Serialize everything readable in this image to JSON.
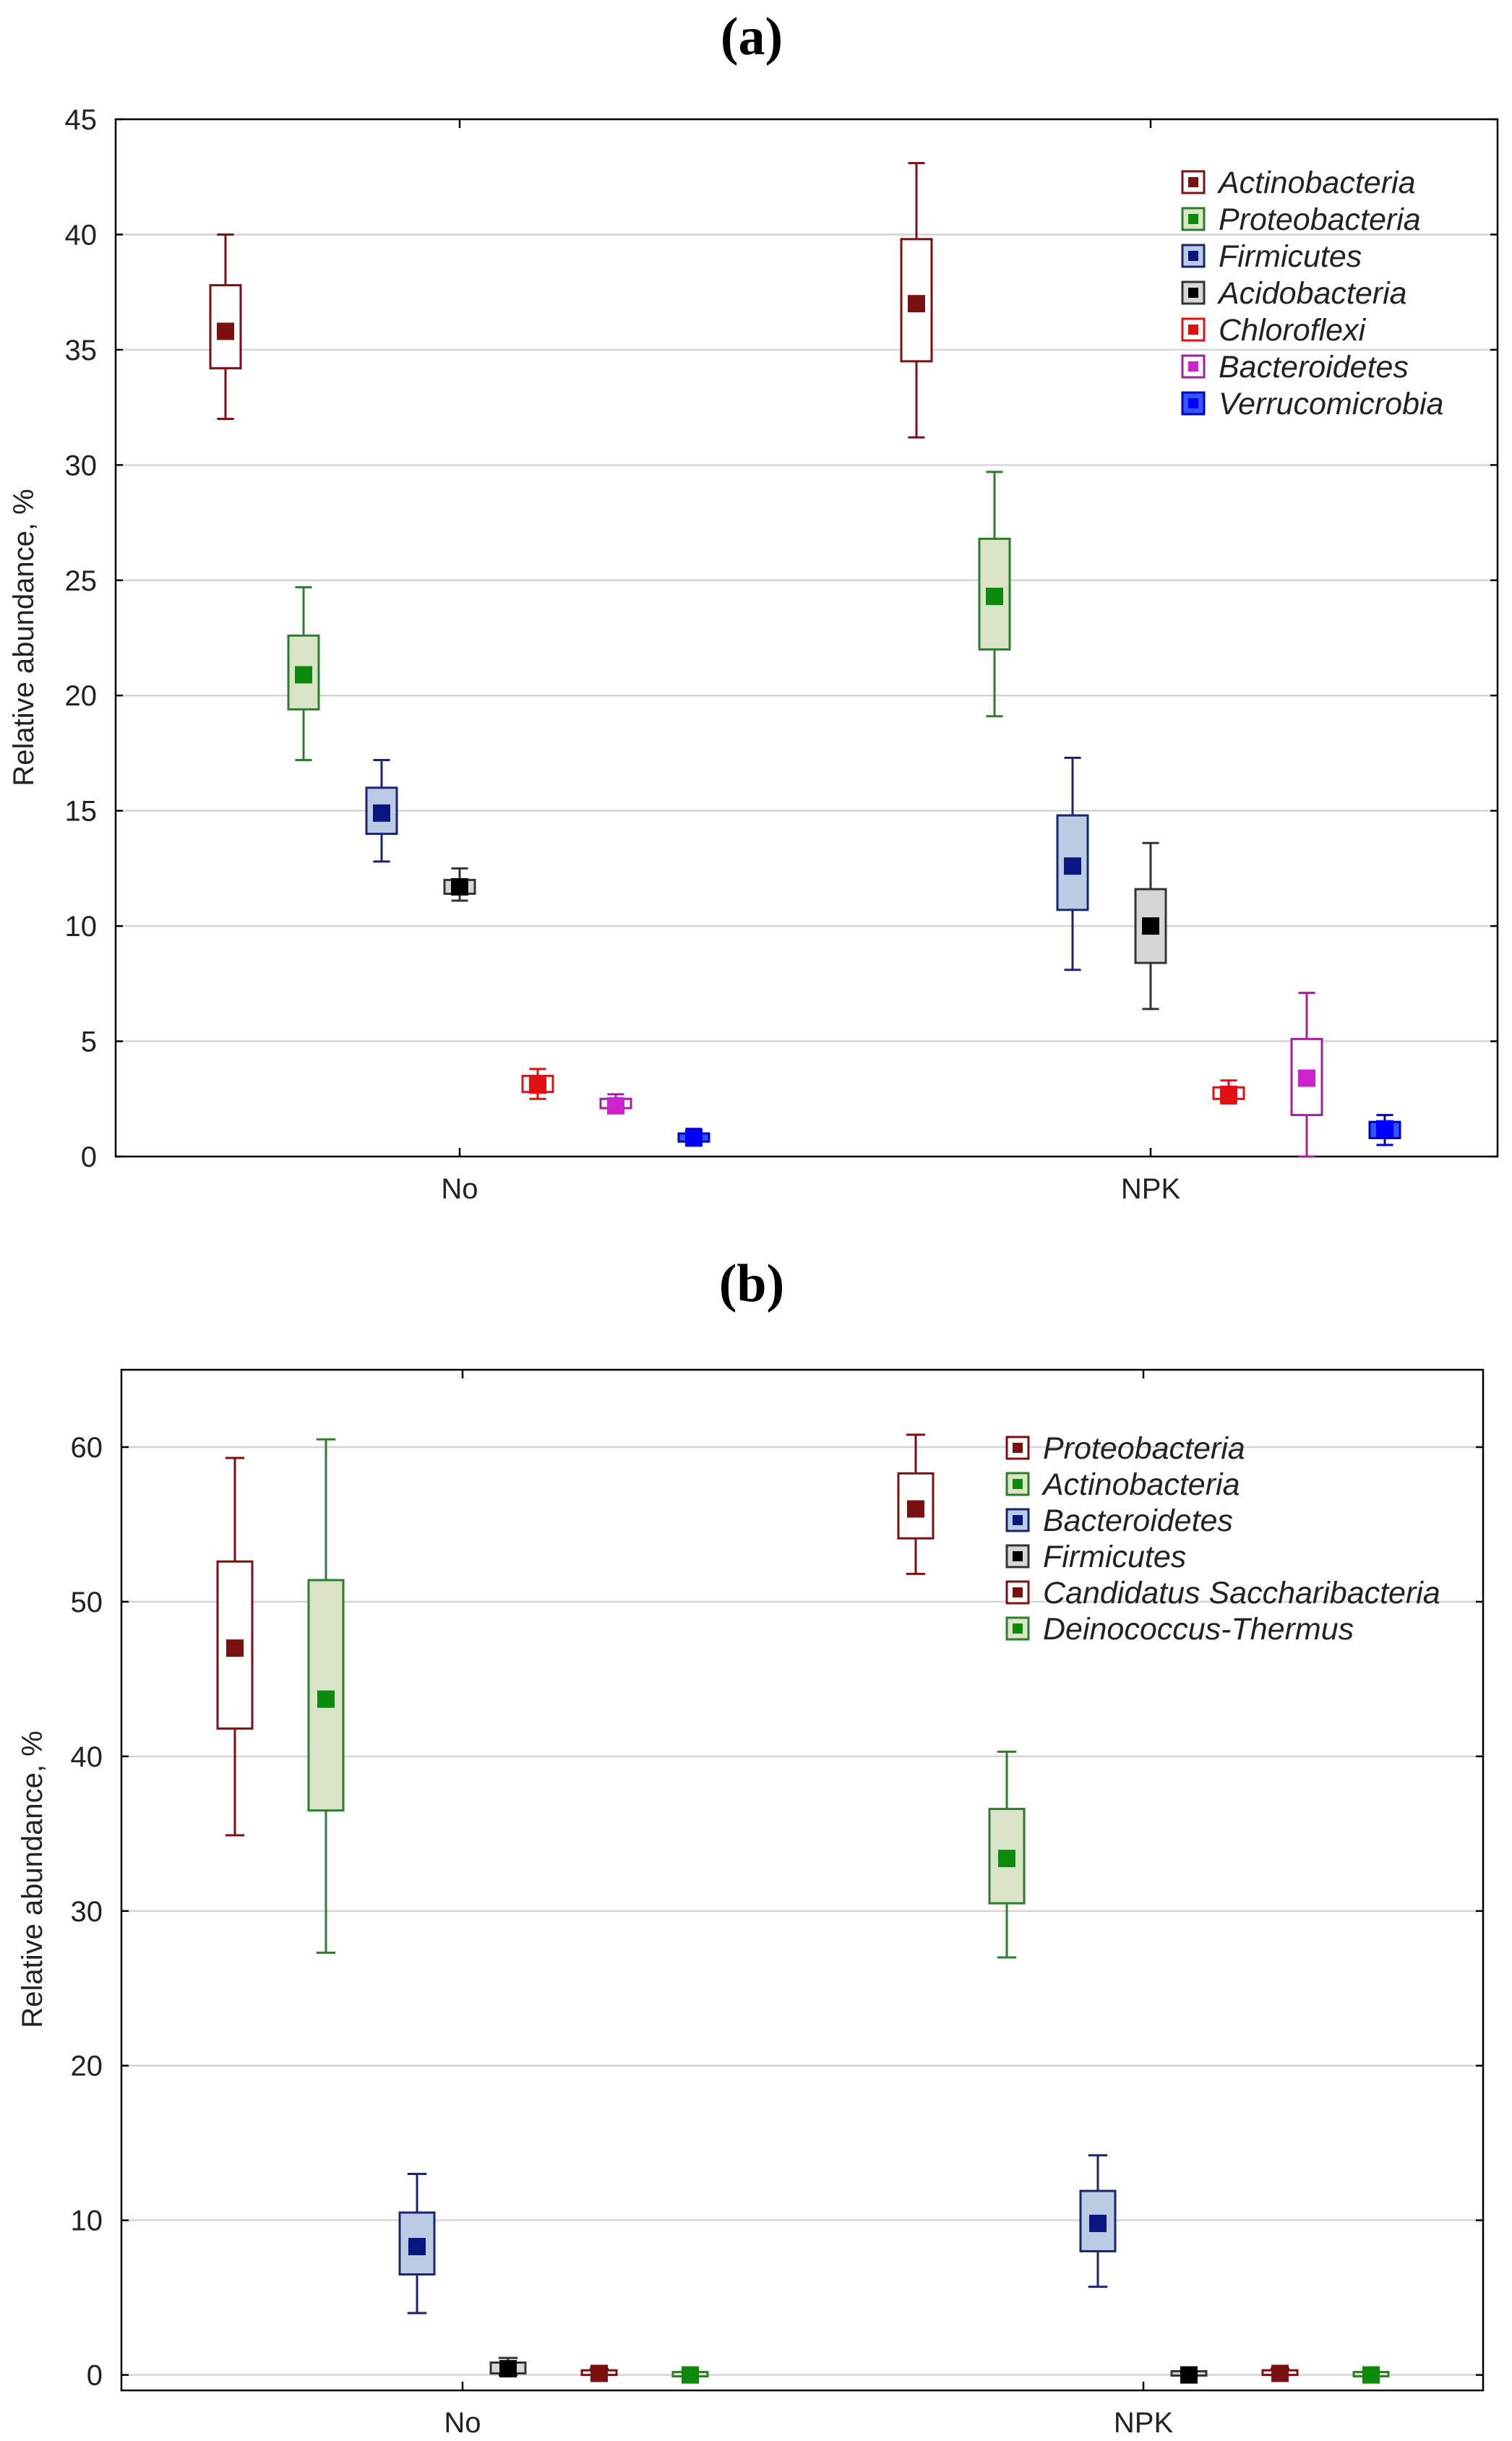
{
  "chart_data": [
    {
      "panel_label": "(a)",
      "type": "box",
      "ylabel": "Relative abundance, %",
      "xlabel": "",
      "ylim": [
        0,
        45
      ],
      "yticks": [
        0,
        5,
        10,
        15,
        20,
        25,
        30,
        35,
        40,
        45
      ],
      "categories": [
        "No",
        "NPK"
      ],
      "grid": true,
      "legend_position": "top-right",
      "series": [
        {
          "name": "Actinobacteria",
          "stroke": "#7b1010",
          "fill": "#ffffff",
          "marker": "#7b1010",
          "stats": [
            {
              "min": 32,
              "q1": 34.2,
              "mean": 35.8,
              "q3": 37.8,
              "max": 40
            },
            {
              "min": 31.2,
              "q1": 34.5,
              "mean": 37,
              "q3": 39.8,
              "max": 43.1
            }
          ]
        },
        {
          "name": "Proteobacteria",
          "stroke": "#2e7d2e",
          "fill": "#d9e5c6",
          "marker": "#0b8a0b",
          "stats": [
            {
              "min": 17.2,
              "q1": 19.4,
              "mean": 20.9,
              "q3": 22.6,
              "max": 24.7
            },
            {
              "min": 19.1,
              "q1": 22,
              "mean": 24.3,
              "q3": 26.8,
              "max": 29.7
            }
          ]
        },
        {
          "name": "Firmicutes",
          "stroke": "#1a2470",
          "fill": "#b9cce4",
          "marker": "#0a1580",
          "stats": [
            {
              "min": 12.8,
              "q1": 14,
              "mean": 14.9,
              "q3": 16,
              "max": 17.2
            },
            {
              "min": 8.1,
              "q1": 10.7,
              "mean": 12.6,
              "q3": 14.8,
              "max": 17.3
            }
          ]
        },
        {
          "name": "Acidobacteria",
          "stroke": "#333333",
          "fill": "#d6d6d6",
          "marker": "#000000",
          "stats": [
            {
              "min": 11.1,
              "q1": 11.4,
              "mean": 11.7,
              "q3": 12,
              "max": 12.5
            },
            {
              "min": 6.4,
              "q1": 8.4,
              "mean": 10,
              "q3": 11.6,
              "max": 13.6
            }
          ]
        },
        {
          "name": "Chloroflexi",
          "stroke": "#e01010",
          "fill": "#ffffff",
          "marker": "#e01010",
          "stats": [
            {
              "min": 2.5,
              "q1": 2.8,
              "mean": 3.1,
              "q3": 3.5,
              "max": 3.8
            },
            {
              "min": 2.3,
              "q1": 2.5,
              "mean": 2.7,
              "q3": 3,
              "max": 3.3
            }
          ]
        },
        {
          "name": "Bacteroidetes",
          "stroke": "#a020a0",
          "fill": "#ffffff",
          "marker": "#cc22cc",
          "stats": [
            {
              "min": 1.9,
              "q1": 2.1,
              "mean": 2.2,
              "q3": 2.5,
              "max": 2.7
            },
            {
              "min": 0,
              "q1": 1.8,
              "mean": 3.4,
              "q3": 5.1,
              "max": 7.1
            }
          ]
        },
        {
          "name": "Verrucomicrobia",
          "stroke": "#0000cc",
          "fill": "#3355ff",
          "marker": "#0000ff",
          "stats": [
            {
              "min": 0.5,
              "q1": 0.65,
              "mean": 0.8,
              "q3": 1,
              "max": 1.2
            },
            {
              "min": 0.5,
              "q1": 0.8,
              "mean": 1.2,
              "q3": 1.5,
              "max": 1.8
            }
          ]
        }
      ]
    },
    {
      "panel_label": "(b)",
      "type": "box",
      "ylabel": "Relative abundance, %",
      "xlabel": "",
      "ylim": [
        -1,
        65
      ],
      "yticks": [
        0,
        10,
        20,
        30,
        40,
        50,
        60
      ],
      "categories": [
        "No",
        "NPK"
      ],
      "grid": true,
      "legend_position": "top-right",
      "series": [
        {
          "name": "Proteobacteria",
          "stroke": "#7b1010",
          "fill": "#ffffff",
          "marker": "#7b1010",
          "stats": [
            {
              "min": 34.9,
              "q1": 41.8,
              "mean": 47,
              "q3": 52.6,
              "max": 59.3
            },
            {
              "min": 51.8,
              "q1": 54.1,
              "mean": 56,
              "q3": 58.3,
              "max": 60.8
            }
          ]
        },
        {
          "name": "Actinobacteria",
          "stroke": "#2e7d2e",
          "fill": "#d9e5c6",
          "marker": "#0b8a0b",
          "stats": [
            {
              "min": 27.3,
              "q1": 36.5,
              "mean": 43.7,
              "q3": 51.4,
              "max": 60.5
            },
            {
              "min": 27,
              "q1": 30.5,
              "mean": 33.4,
              "q3": 36.6,
              "max": 40.3
            }
          ]
        },
        {
          "name": "Bacteroidetes",
          "stroke": "#1a2470",
          "fill": "#b9cce4",
          "marker": "#0a1580",
          "stats": [
            {
              "min": 4,
              "q1": 6.5,
              "mean": 8.3,
              "q3": 10.5,
              "max": 13
            },
            {
              "min": 5.7,
              "q1": 8,
              "mean": 9.8,
              "q3": 11.9,
              "max": 14.2
            }
          ]
        },
        {
          "name": "Firmicutes",
          "stroke": "#333333",
          "fill": "#d6d6d6",
          "marker": "#000000",
          "stats": [
            {
              "min": 0,
              "q1": 0.1,
              "mean": 0.4,
              "q3": 0.8,
              "max": 1.1
            },
            {
              "min": 0,
              "q1": 0,
              "mean": 0,
              "q3": 0.2,
              "max": 0.2
            }
          ]
        },
        {
          "name": "Candidatus Saccharibacteria",
          "stroke": "#7b1010",
          "fill": "#ffffff",
          "marker": "#7b1010",
          "stats": [
            {
              "min": 0,
              "q1": 0,
              "mean": 0.1,
              "q3": 0.3,
              "max": 0.4
            },
            {
              "min": 0,
              "q1": 0,
              "mean": 0.1,
              "q3": 0.3,
              "max": 0.4
            }
          ]
        },
        {
          "name": "Deinococcus-Thermus",
          "stroke": "#2e7d2e",
          "fill": "#d9e5c6",
          "marker": "#0b8a0b",
          "stats": [
            {
              "min": 0,
              "q1": 0,
              "mean": 0,
              "q3": 0.1,
              "max": 0.1
            },
            {
              "min": 0,
              "q1": 0,
              "mean": 0,
              "q3": 0.1,
              "max": 0.1
            }
          ]
        }
      ]
    }
  ]
}
